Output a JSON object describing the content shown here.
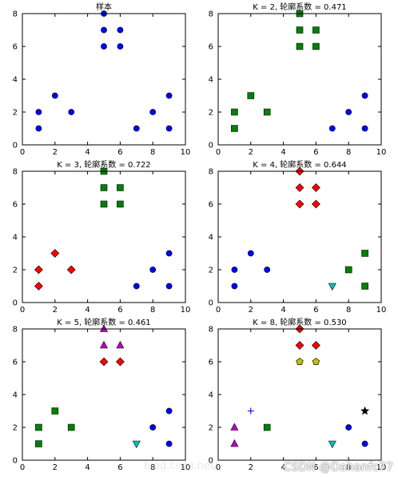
{
  "watermark": "CSDN @Dahanfc77",
  "url_watermark": "blog.csdn.net/",
  "colors": {
    "blue": "#0000ff",
    "green": "#008000",
    "red": "#ff0000",
    "cyan": "#00bfbf",
    "magenta": "#bf00bf",
    "yellow": "#bfbf00",
    "black": "#000000"
  },
  "chart_data": [
    {
      "type": "scatter",
      "title": "样本",
      "xlim": [
        0,
        10
      ],
      "ylim": [
        0,
        8
      ],
      "xticks": [
        0,
        2,
        4,
        6,
        8,
        10
      ],
      "yticks": [
        0,
        2,
        4,
        6,
        8
      ],
      "series": [
        {
          "marker": "circle",
          "color": "#0000ff",
          "points": [
            [
              1,
              1
            ],
            [
              1,
              2
            ],
            [
              2,
              3
            ],
            [
              3,
              2
            ],
            [
              5,
              6
            ],
            [
              5,
              7
            ],
            [
              5,
              8
            ],
            [
              6,
              6
            ],
            [
              6,
              7
            ],
            [
              7,
              1
            ],
            [
              8,
              2
            ],
            [
              9,
              1
            ],
            [
              9,
              3
            ]
          ]
        }
      ]
    },
    {
      "type": "scatter",
      "title": "K = 2, 轮廓系数 = 0.471",
      "xlim": [
        0,
        10
      ],
      "ylim": [
        0,
        8
      ],
      "xticks": [
        0,
        2,
        4,
        6,
        8,
        10
      ],
      "yticks": [
        0,
        2,
        4,
        6,
        8
      ],
      "series": [
        {
          "marker": "square",
          "color": "#008000",
          "points": [
            [
              1,
              1
            ],
            [
              1,
              2
            ],
            [
              2,
              3
            ],
            [
              3,
              2
            ],
            [
              5,
              6
            ],
            [
              5,
              7
            ],
            [
              5,
              8
            ],
            [
              6,
              6
            ],
            [
              6,
              7
            ]
          ]
        },
        {
          "marker": "circle",
          "color": "#0000ff",
          "points": [
            [
              7,
              1
            ],
            [
              8,
              2
            ],
            [
              9,
              1
            ],
            [
              9,
              3
            ]
          ]
        }
      ]
    },
    {
      "type": "scatter",
      "title": "K = 3, 轮廓系数 = 0.722",
      "xlim": [
        0,
        10
      ],
      "ylim": [
        0,
        8
      ],
      "xticks": [
        0,
        2,
        4,
        6,
        8,
        10
      ],
      "yticks": [
        0,
        2,
        4,
        6,
        8
      ],
      "series": [
        {
          "marker": "diamond",
          "color": "#ff0000",
          "points": [
            [
              1,
              1
            ],
            [
              1,
              2
            ],
            [
              2,
              3
            ],
            [
              3,
              2
            ]
          ]
        },
        {
          "marker": "square",
          "color": "#008000",
          "points": [
            [
              5,
              6
            ],
            [
              5,
              7
            ],
            [
              5,
              8
            ],
            [
              6,
              6
            ],
            [
              6,
              7
            ]
          ]
        },
        {
          "marker": "circle",
          "color": "#0000ff",
          "points": [
            [
              7,
              1
            ],
            [
              8,
              2
            ],
            [
              9,
              1
            ],
            [
              9,
              3
            ]
          ]
        }
      ]
    },
    {
      "type": "scatter",
      "title": "K = 4, 轮廓系数 = 0.644",
      "xlim": [
        0,
        10
      ],
      "ylim": [
        0,
        8
      ],
      "xticks": [
        0,
        2,
        4,
        6,
        8,
        10
      ],
      "yticks": [
        0,
        2,
        4,
        6,
        8
      ],
      "series": [
        {
          "marker": "circle",
          "color": "#0000ff",
          "points": [
            [
              1,
              1
            ],
            [
              1,
              2
            ],
            [
              2,
              3
            ],
            [
              3,
              2
            ]
          ]
        },
        {
          "marker": "diamond",
          "color": "#ff0000",
          "points": [
            [
              5,
              6
            ],
            [
              5,
              7
            ],
            [
              5,
              8
            ],
            [
              6,
              6
            ],
            [
              6,
              7
            ]
          ]
        },
        {
          "marker": "triangle-down",
          "color": "#00bfbf",
          "points": [
            [
              7,
              1
            ]
          ]
        },
        {
          "marker": "square",
          "color": "#008000",
          "points": [
            [
              8,
              2
            ],
            [
              9,
              1
            ],
            [
              9,
              3
            ]
          ]
        }
      ]
    },
    {
      "type": "scatter",
      "title": "K = 5, 轮廓系数 = 0.461",
      "xlim": [
        0,
        10
      ],
      "ylim": [
        0,
        8
      ],
      "xticks": [
        0,
        2,
        4,
        6,
        8,
        10
      ],
      "yticks": [
        0,
        2,
        4,
        6,
        8
      ],
      "series": [
        {
          "marker": "square",
          "color": "#008000",
          "points": [
            [
              1,
              1
            ],
            [
              1,
              2
            ],
            [
              2,
              3
            ],
            [
              3,
              2
            ]
          ]
        },
        {
          "marker": "diamond",
          "color": "#ff0000",
          "points": [
            [
              5,
              6
            ],
            [
              6,
              6
            ]
          ]
        },
        {
          "marker": "triangle-up",
          "color": "#bf00bf",
          "points": [
            [
              5,
              7
            ],
            [
              5,
              8
            ],
            [
              6,
              7
            ]
          ]
        },
        {
          "marker": "triangle-down",
          "color": "#00bfbf",
          "points": [
            [
              7,
              1
            ]
          ]
        },
        {
          "marker": "circle",
          "color": "#0000ff",
          "points": [
            [
              8,
              2
            ],
            [
              9,
              1
            ],
            [
              9,
              3
            ]
          ]
        }
      ]
    },
    {
      "type": "scatter",
      "title": "K = 8, 轮廓系数 = 0.530",
      "xlim": [
        0,
        10
      ],
      "ylim": [
        0,
        8
      ],
      "xticks": [
        0,
        2,
        4,
        6,
        8,
        10
      ],
      "yticks": [
        0,
        2,
        4,
        6,
        8
      ],
      "series": [
        {
          "marker": "triangle-up",
          "color": "#bf00bf",
          "points": [
            [
              1,
              1
            ],
            [
              1,
              2
            ]
          ]
        },
        {
          "marker": "plus",
          "color": "#0000ff",
          "points": [
            [
              2,
              3
            ]
          ]
        },
        {
          "marker": "square",
          "color": "#008000",
          "points": [
            [
              3,
              2
            ]
          ]
        },
        {
          "marker": "pentagon",
          "color": "#bfbf00",
          "points": [
            [
              5,
              6
            ],
            [
              6,
              6
            ]
          ]
        },
        {
          "marker": "diamond",
          "color": "#ff0000",
          "points": [
            [
              5,
              7
            ],
            [
              5,
              8
            ],
            [
              6,
              7
            ]
          ]
        },
        {
          "marker": "triangle-down",
          "color": "#00bfbf",
          "points": [
            [
              7,
              1
            ]
          ]
        },
        {
          "marker": "circle",
          "color": "#0000ff",
          "points": [
            [
              8,
              2
            ],
            [
              9,
              1
            ]
          ]
        },
        {
          "marker": "star",
          "color": "#000000",
          "points": [
            [
              9,
              3
            ]
          ]
        }
      ]
    }
  ]
}
